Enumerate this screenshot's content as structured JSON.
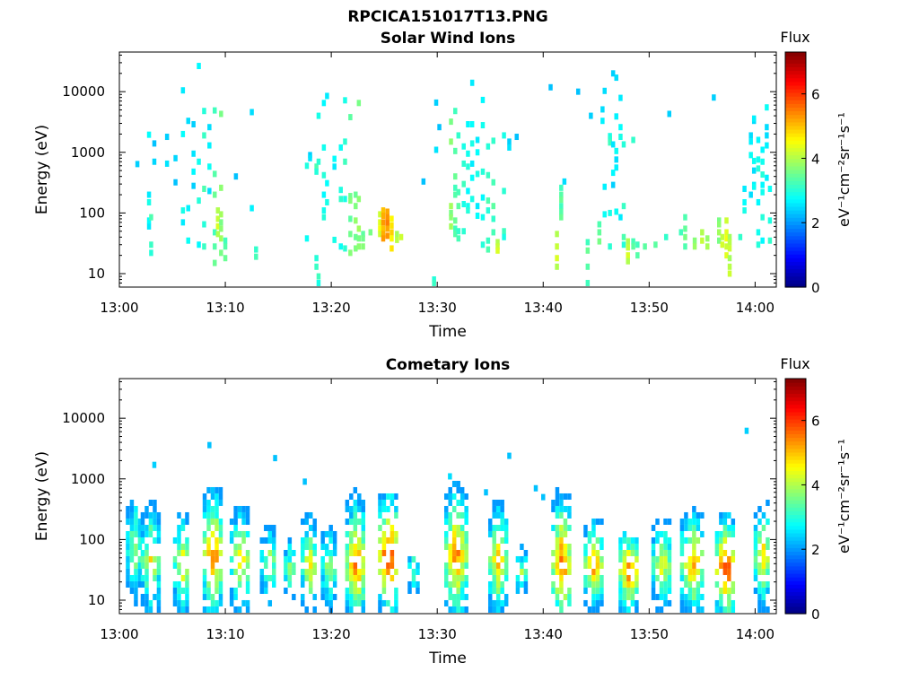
{
  "figure_title": "RPCICA151017T13.PNG",
  "colormap": [
    "#00007f",
    "#0000ff",
    "#007fff",
    "#00ffff",
    "#7fff7f",
    "#ffff00",
    "#ff7f00",
    "#ff0000",
    "#7f0000"
  ],
  "chart_data": [
    {
      "type": "heatmap",
      "title": "Solar Wind Ions",
      "xlabel": "Time",
      "ylabel": "Energy (eV)",
      "x_range": [
        "13:00",
        "14:02"
      ],
      "x_ticks": [
        "13:00",
        "13:10",
        "13:20",
        "13:30",
        "13:40",
        "13:50",
        "14:00"
      ],
      "y_scale": "log",
      "y_range": [
        6,
        45000
      ],
      "y_ticks": [
        "10",
        "100",
        "1000",
        "10000"
      ],
      "colorbar": {
        "title": "Flux",
        "label": "eV⁻¹cm⁻²sr⁻¹s⁻¹",
        "range": [
          0,
          7.3
        ],
        "ticks": [
          "0",
          "2",
          "4",
          "6"
        ]
      },
      "columns": [
        {
          "t": 1.7,
          "e": [
            640
          ],
          "v": 2.4
        },
        {
          "t": 2.8,
          "e": [
            60,
            75,
            150,
            200,
            1950
          ],
          "v": 2.6
        },
        {
          "t": 3.0,
          "e": [
            22,
            30,
            85
          ],
          "v": 3.0
        },
        {
          "t": 3.3,
          "e": [
            1400,
            700
          ],
          "v": 2.3
        },
        {
          "t": 4.5,
          "e": [
            1800,
            650
          ],
          "v": 2.4
        },
        {
          "t": 5.3,
          "e": [
            320,
            800
          ],
          "v": 2.3
        },
        {
          "t": 6.0,
          "e": [
            10500,
            2000,
            110,
            70
          ],
          "v": 2.6
        },
        {
          "t": 6.5,
          "e": [
            3300,
            120,
            35
          ],
          "v": 2.5
        },
        {
          "t": 7.0,
          "e": [
            2900,
            950,
            480,
            280
          ],
          "v": 2.4
        },
        {
          "t": 7.5,
          "e": [
            26500,
            700,
            160,
            30
          ],
          "v": 2.7
        },
        {
          "t": 8.0,
          "e": [
            4800,
            1900,
            250,
            65,
            28
          ],
          "v": 3.0
        },
        {
          "t": 8.5,
          "e": [
            2600,
            1300,
            580,
            230
          ],
          "v": 2.5
        },
        {
          "t": 9.0,
          "e": [
            4900,
            440,
            200,
            48,
            28,
            15
          ],
          "v": 3.2
        },
        {
          "t": 9.3,
          "e": [
            110,
            80,
            60,
            45
          ],
          "v": 4.0
        },
        {
          "t": 9.6,
          "e": [
            4300,
            260,
            95,
            70,
            55,
            38,
            22
          ],
          "v": 3.6
        },
        {
          "t": 10.0,
          "e": [
            35,
            28,
            18
          ],
          "v": 3.2
        },
        {
          "t": 11.0,
          "e": [
            400
          ],
          "v": 2.3
        },
        {
          "t": 12.5,
          "e": [
            4600,
            120
          ],
          "v": 2.5
        },
        {
          "t": 12.9,
          "e": [
            25,
            19
          ],
          "v": 3.1
        },
        {
          "t": 17.7,
          "e": [
            38,
            600
          ],
          "v": 2.8
        },
        {
          "t": 18.0,
          "e": [
            900,
            800
          ],
          "v": 2.4
        },
        {
          "t": 18.6,
          "e": [
            18,
            13,
            580,
            480
          ],
          "v": 3.0
        },
        {
          "t": 18.8,
          "e": [
            4000,
            700,
            9,
            7
          ],
          "v": 2.9
        },
        {
          "t": 19.3,
          "e": [
            6500,
            1200,
            420,
            200,
            110,
            85
          ],
          "v": 2.7
        },
        {
          "t": 19.6,
          "e": [
            8500,
            310,
            150
          ],
          "v": 2.6
        },
        {
          "t": 20.3,
          "e": [
            580,
            780,
            36
          ],
          "v": 2.6
        },
        {
          "t": 20.9,
          "e": [
            1200,
            240,
            170,
            28
          ],
          "v": 2.8
        },
        {
          "t": 21.3,
          "e": [
            7200,
            1500,
            700,
            170,
            26
          ],
          "v": 2.9
        },
        {
          "t": 21.8,
          "e": [
            3800,
            190,
            160,
            80,
            45,
            22
          ],
          "v": 3.4
        },
        {
          "t": 22.3,
          "e": [
            200,
            130,
            75,
            40,
            26
          ],
          "v": 3.5
        },
        {
          "t": 22.6,
          "e": [
            6500,
            170,
            55,
            38,
            28
          ],
          "v": 3.6
        },
        {
          "t": 23.0,
          "e": [
            45,
            38,
            28
          ],
          "v": 3.4
        },
        {
          "t": 23.7,
          "e": [
            48
          ],
          "v": 3.6
        },
        {
          "t": 24.6,
          "e": [
            95,
            70,
            55,
            45
          ],
          "v": 4.2
        },
        {
          "t": 24.9,
          "e": [
            110,
            90,
            70,
            55,
            45,
            38
          ],
          "v": 5.0
        },
        {
          "t": 25.3,
          "e": [
            105,
            85,
            68,
            55,
            42
          ],
          "v": 5.2
        },
        {
          "t": 25.7,
          "e": [
            80,
            62,
            48,
            38,
            26
          ],
          "v": 4.6
        },
        {
          "t": 26.2,
          "e": [
            45,
            36
          ],
          "v": 3.9
        },
        {
          "t": 26.6,
          "e": [
            40
          ],
          "v": 4.2
        },
        {
          "t": 28.7,
          "e": [
            330
          ],
          "v": 2.3
        },
        {
          "t": 29.7,
          "e": [
            8,
            7
          ],
          "v": 3.0
        },
        {
          "t": 29.9,
          "e": [
            6600,
            1100
          ],
          "v": 2.4
        },
        {
          "t": 30.2,
          "e": [
            2600
          ],
          "v": 2.3
        },
        {
          "t": 31.3,
          "e": [
            3200,
            1500,
            130,
            100,
            85,
            60
          ],
          "v": 3.6
        },
        {
          "t": 31.7,
          "e": [
            4800,
            1050,
            400,
            260,
            200,
            75,
            55,
            45
          ],
          "v": 3.2
        },
        {
          "t": 32.0,
          "e": [
            1900,
            220,
            130,
            50,
            38
          ],
          "v": 3.1
        },
        {
          "t": 32.5,
          "e": [
            1250,
            650,
            300,
            140,
            50
          ],
          "v": 2.9
        },
        {
          "t": 32.9,
          "e": [
            2900,
            950,
            580,
            230,
            130,
            110
          ],
          "v": 2.7
        },
        {
          "t": 33.3,
          "e": [
            14000,
            2900,
            1400,
            650,
            380,
            170
          ],
          "v": 2.6
        },
        {
          "t": 33.8,
          "e": [
            1600,
            1000,
            440,
            130,
            90
          ],
          "v": 2.6
        },
        {
          "t": 34.3,
          "e": [
            7300,
            2800,
            480,
            180,
            85,
            30
          ],
          "v": 2.7
        },
        {
          "t": 34.8,
          "e": [
            1250,
            420,
            160,
            110,
            35,
            25
          ],
          "v": 3.0
        },
        {
          "t": 35.3,
          "e": [
            1550,
            320,
            130,
            80,
            48
          ],
          "v": 3.1
        },
        {
          "t": 35.7,
          "e": [
            33,
            28,
            24
          ],
          "v": 4.0
        },
        {
          "t": 36.3,
          "e": [
            1900,
            230,
            50,
            40
          ],
          "v": 2.9
        },
        {
          "t": 36.8,
          "e": [
            1500,
            1200
          ],
          "v": 2.4
        },
        {
          "t": 37.5,
          "e": [
            1800
          ],
          "v": 2.3
        },
        {
          "t": 40.7,
          "e": [
            11800
          ],
          "v": 2.3
        },
        {
          "t": 41.3,
          "e": [
            45,
            28,
            18,
            13
          ],
          "v": 4.0
        },
        {
          "t": 41.7,
          "e": [
            260,
            200,
            165,
            130,
            105,
            85
          ],
          "v": 3.2
        },
        {
          "t": 42.0,
          "e": [
            330
          ],
          "v": 2.5
        },
        {
          "t": 43.3,
          "e": [
            10000
          ],
          "v": 2.3
        },
        {
          "t": 44.2,
          "e": [
            7,
            13,
            24,
            33
          ],
          "v": 3.2
        },
        {
          "t": 44.5,
          "e": [
            4000
          ],
          "v": 2.4
        },
        {
          "t": 45.3,
          "e": [
            65,
            48,
            34
          ],
          "v": 3.3
        },
        {
          "t": 45.6,
          "e": [
            5100,
            3300
          ],
          "v": 2.5
        },
        {
          "t": 45.8,
          "e": [
            10300,
            270,
            95
          ],
          "v": 2.5
        },
        {
          "t": 46.3,
          "e": [
            1850,
            1650,
            1450,
            100,
            28
          ],
          "v": 2.9
        },
        {
          "t": 46.6,
          "e": [
            20000,
            1350,
            460,
            290
          ],
          "v": 2.4
        },
        {
          "t": 46.9,
          "e": [
            17000,
            3900,
            1050,
            760,
            560,
            105
          ],
          "v": 2.5
        },
        {
          "t": 47.3,
          "e": [
            7900,
            2600,
            1800,
            85
          ],
          "v": 2.6
        },
        {
          "t": 47.6,
          "e": [
            1350,
            130,
            40,
            30
          ],
          "v": 3.0
        },
        {
          "t": 48.0,
          "e": [
            34,
            27,
            20,
            16
          ],
          "v": 4.0
        },
        {
          "t": 48.5,
          "e": [
            1600,
            34,
            28
          ],
          "v": 3.1
        },
        {
          "t": 48.9,
          "e": [
            30,
            20
          ],
          "v": 3.2
        },
        {
          "t": 49.6,
          "e": [
            28
          ],
          "v": 3.4
        },
        {
          "t": 50.6,
          "e": [
            30
          ],
          "v": 3.4
        },
        {
          "t": 51.6,
          "e": [
            40
          ],
          "v": 3.1
        },
        {
          "t": 51.9,
          "e": [
            4300
          ],
          "v": 2.4
        },
        {
          "t": 53.0,
          "e": [
            48
          ],
          "v": 3.2
        },
        {
          "t": 53.4,
          "e": [
            85,
            55,
            40,
            28
          ],
          "v": 3.3
        },
        {
          "t": 54.3,
          "e": [
            35,
            28
          ],
          "v": 3.7
        },
        {
          "t": 55.0,
          "e": [
            48,
            35
          ],
          "v": 4.0
        },
        {
          "t": 55.5,
          "e": [
            38,
            28
          ],
          "v": 3.8
        },
        {
          "t": 56.1,
          "e": [
            8000
          ],
          "v": 2.4
        },
        {
          "t": 56.6,
          "e": [
            75,
            65,
            48,
            35
          ],
          "v": 3.6
        },
        {
          "t": 56.9,
          "e": [
            40,
            30
          ],
          "v": 4.1
        },
        {
          "t": 57.3,
          "e": [
            75,
            48,
            38,
            28,
            20
          ],
          "v": 4.2
        },
        {
          "t": 57.6,
          "e": [
            40,
            33,
            26,
            18,
            13,
            10
          ],
          "v": 3.9
        },
        {
          "t": 58.6,
          "e": [
            40
          ],
          "v": 3.1
        },
        {
          "t": 59.0,
          "e": [
            250,
            150,
            110
          ],
          "v": 2.6
        },
        {
          "t": 59.6,
          "e": [
            1900,
            1500,
            900,
            200
          ],
          "v": 2.5
        },
        {
          "t": 59.9,
          "e": [
            3300,
            3600,
            720,
            500,
            290,
            270
          ],
          "v": 2.5
        },
        {
          "t": 60.3,
          "e": [
            1600,
            760,
            540,
            150,
            48,
            30
          ],
          "v": 2.7
        },
        {
          "t": 60.7,
          "e": [
            1100,
            700,
            430,
            290,
            220,
            85,
            35
          ],
          "v": 2.7
        },
        {
          "t": 61.1,
          "e": [
            1900,
            1300,
            5500,
            2600,
            380
          ],
          "v": 2.5
        },
        {
          "t": 61.4,
          "e": [
            250,
            75,
            35
          ],
          "v": 2.8
        }
      ]
    },
    {
      "type": "heatmap",
      "title": "Cometary Ions",
      "xlabel": "Time",
      "ylabel": "Energy (eV)",
      "x_range": [
        "13:00",
        "14:02"
      ],
      "x_ticks": [
        "13:00",
        "13:10",
        "13:20",
        "13:30",
        "13:40",
        "13:50",
        "14:00"
      ],
      "y_scale": "log",
      "y_range": [
        6,
        45000
      ],
      "y_ticks": [
        "10",
        "100",
        "1000",
        "10000"
      ],
      "colorbar": {
        "title": "Flux",
        "label": "eV⁻¹cm⁻²sr⁻¹s⁻¹",
        "range": [
          0,
          7.3
        ],
        "ticks": [
          "0",
          "2",
          "4",
          "6"
        ]
      },
      "spot_points": [
        {
          "t": 3.3,
          "e": 1700,
          "v": 2.4
        },
        {
          "t": 8.5,
          "e": 3600,
          "v": 2.3
        },
        {
          "t": 14.7,
          "e": 2200,
          "v": 2.3
        },
        {
          "t": 17.5,
          "e": 900,
          "v": 2.3
        },
        {
          "t": 31.2,
          "e": 1100,
          "v": 2.5
        },
        {
          "t": 34.6,
          "e": 600,
          "v": 2.3
        },
        {
          "t": 36.8,
          "e": 2400,
          "v": 2.3
        },
        {
          "t": 39.3,
          "e": 700,
          "v": 2.3
        },
        {
          "t": 40.0,
          "e": 500,
          "v": 2.3
        },
        {
          "t": 59.2,
          "e": 6200,
          "v": 2.4
        }
      ],
      "bursts": [
        {
          "t": 1.5,
          "w": 1.4,
          "emax": 500,
          "peak": 4.2,
          "pe": 70
        },
        {
          "t": 3.0,
          "w": 1.6,
          "emax": 550,
          "peak": 4.7,
          "pe": 45
        },
        {
          "t": 6.0,
          "w": 1.5,
          "emax": 400,
          "peak": 4.8,
          "pe": 40
        },
        {
          "t": 8.9,
          "w": 1.7,
          "emax": 800,
          "peak": 5.9,
          "pe": 55
        },
        {
          "t": 11.5,
          "w": 1.8,
          "emax": 400,
          "peak": 5.0,
          "pe": 45
        },
        {
          "t": 14.2,
          "w": 1.5,
          "emax": 180,
          "peak": 4.2,
          "pe": 40
        },
        {
          "t": 16.2,
          "w": 1.0,
          "emax": 100,
          "peak": 4.1,
          "pe": 35
        },
        {
          "t": 18.0,
          "w": 1.4,
          "emax": 350,
          "peak": 4.8,
          "pe": 40
        },
        {
          "t": 19.8,
          "w": 1.2,
          "emax": 180,
          "peak": 4.4,
          "pe": 35
        },
        {
          "t": 22.4,
          "w": 1.8,
          "emax": 700,
          "peak": 5.9,
          "pe": 42
        },
        {
          "t": 25.5,
          "w": 1.8,
          "emax": 600,
          "peak": 6.6,
          "pe": 55
        },
        {
          "t": 27.8,
          "w": 0.8,
          "emax": 50,
          "peak": 4.0,
          "pe": 30
        },
        {
          "t": 31.8,
          "w": 1.9,
          "emax": 1000,
          "peak": 5.8,
          "pe": 55
        },
        {
          "t": 35.8,
          "w": 1.6,
          "emax": 450,
          "peak": 5.3,
          "pe": 45
        },
        {
          "t": 38.0,
          "w": 0.8,
          "emax": 80,
          "peak": 4.0,
          "pe": 30
        },
        {
          "t": 41.8,
          "w": 1.7,
          "emax": 1100,
          "peak": 5.9,
          "pe": 40
        },
        {
          "t": 44.8,
          "w": 1.6,
          "emax": 200,
          "peak": 5.6,
          "pe": 38
        },
        {
          "t": 48.2,
          "w": 1.8,
          "emax": 150,
          "peak": 6.1,
          "pe": 30
        },
        {
          "t": 51.3,
          "w": 1.8,
          "emax": 250,
          "peak": 4.8,
          "pe": 40
        },
        {
          "t": 54.2,
          "w": 2.2,
          "emax": 380,
          "peak": 5.5,
          "pe": 40
        },
        {
          "t": 57.3,
          "w": 1.8,
          "emax": 300,
          "peak": 6.6,
          "pe": 33
        },
        {
          "t": 60.8,
          "w": 1.5,
          "emax": 450,
          "peak": 5.0,
          "pe": 55
        }
      ]
    }
  ]
}
